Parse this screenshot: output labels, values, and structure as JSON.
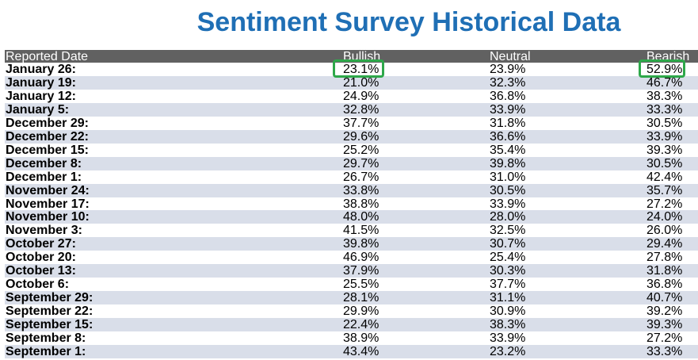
{
  "title": "Sentiment Survey Historical Data",
  "columns": {
    "date": "Reported Date",
    "bullish": "Bullish",
    "neutral": "Neutral",
    "bearish": "Bearish"
  },
  "highlight_color": "#2ea84a",
  "title_color": "#1f6fb5",
  "rows": [
    {
      "date": "January 26:",
      "bullish": "23.1%",
      "neutral": "23.9%",
      "bearish": "52.9%"
    },
    {
      "date": "January 19:",
      "bullish": "21.0%",
      "neutral": "32.3%",
      "bearish": "46.7%"
    },
    {
      "date": "January 12:",
      "bullish": "24.9%",
      "neutral": "36.8%",
      "bearish": "38.3%"
    },
    {
      "date": "January 5:",
      "bullish": "32.8%",
      "neutral": "33.9%",
      "bearish": "33.3%"
    },
    {
      "date": "December 29:",
      "bullish": "37.7%",
      "neutral": "31.8%",
      "bearish": "30.5%"
    },
    {
      "date": "December 22:",
      "bullish": "29.6%",
      "neutral": "36.6%",
      "bearish": "33.9%"
    },
    {
      "date": "December 15:",
      "bullish": "25.2%",
      "neutral": "35.4%",
      "bearish": "39.3%"
    },
    {
      "date": "December 8:",
      "bullish": "29.7%",
      "neutral": "39.8%",
      "bearish": "30.5%"
    },
    {
      "date": "December 1:",
      "bullish": "26.7%",
      "neutral": "31.0%",
      "bearish": "42.4%"
    },
    {
      "date": "November 24:",
      "bullish": "33.8%",
      "neutral": "30.5%",
      "bearish": "35.7%"
    },
    {
      "date": "November 17:",
      "bullish": "38.8%",
      "neutral": "33.9%",
      "bearish": "27.2%"
    },
    {
      "date": "November 10:",
      "bullish": "48.0%",
      "neutral": "28.0%",
      "bearish": "24.0%"
    },
    {
      "date": "November 3:",
      "bullish": "41.5%",
      "neutral": "32.5%",
      "bearish": "26.0%"
    },
    {
      "date": "October 27:",
      "bullish": "39.8%",
      "neutral": "30.7%",
      "bearish": "29.4%"
    },
    {
      "date": "October 20:",
      "bullish": "46.9%",
      "neutral": "25.4%",
      "bearish": "27.8%"
    },
    {
      "date": "October 13:",
      "bullish": "37.9%",
      "neutral": "30.3%",
      "bearish": "31.8%"
    },
    {
      "date": "October 6:",
      "bullish": "25.5%",
      "neutral": "37.7%",
      "bearish": "36.8%"
    },
    {
      "date": "September 29:",
      "bullish": "28.1%",
      "neutral": "31.1%",
      "bearish": "40.7%"
    },
    {
      "date": "September 22:",
      "bullish": "29.9%",
      "neutral": "30.9%",
      "bearish": "39.2%"
    },
    {
      "date": "September 15:",
      "bullish": "22.4%",
      "neutral": "38.3%",
      "bearish": "39.3%"
    },
    {
      "date": "September 8:",
      "bullish": "38.9%",
      "neutral": "33.9%",
      "bearish": "27.2%"
    },
    {
      "date": "September 1:",
      "bullish": "43.4%",
      "neutral": "23.2%",
      "bearish": "33.3%"
    }
  ]
}
